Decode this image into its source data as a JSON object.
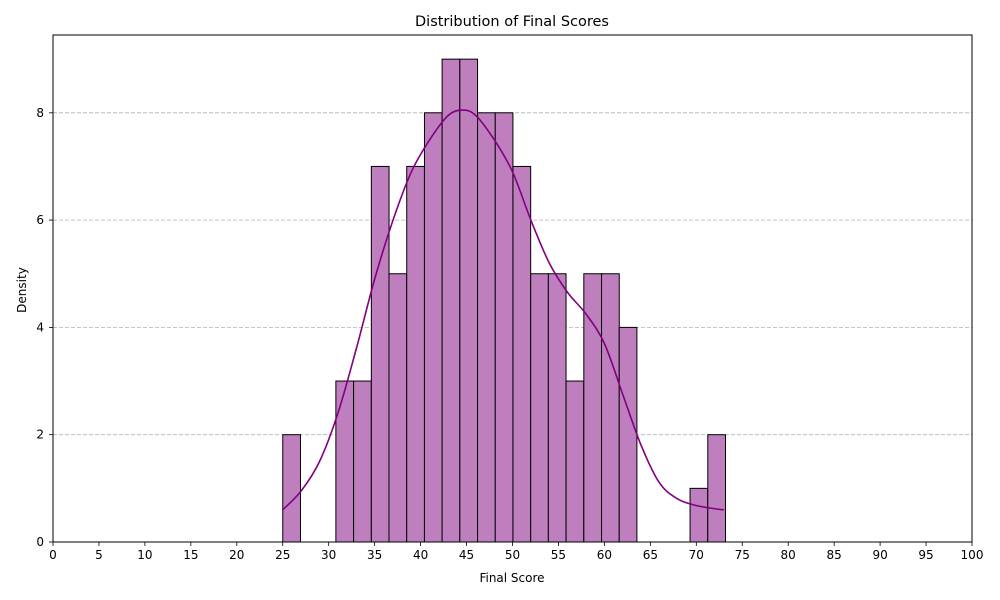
{
  "chart_data": {
    "type": "bar",
    "title": "Distribution of Final Scores",
    "xlabel": "Final Score",
    "ylabel": "Density",
    "xlim": [
      0,
      100
    ],
    "ylim": [
      0,
      9.45
    ],
    "xticks": [
      0,
      5,
      10,
      15,
      20,
      25,
      30,
      35,
      40,
      45,
      50,
      55,
      60,
      65,
      70,
      75,
      80,
      85,
      90,
      95,
      100
    ],
    "yticks": [
      0,
      2,
      4,
      6,
      8
    ],
    "grid": "y-dashed",
    "bin_width": 1.927,
    "bins": [
      {
        "x0": 25.0,
        "count": 2
      },
      {
        "x0": 26.93,
        "count": 0
      },
      {
        "x0": 28.85,
        "count": 0
      },
      {
        "x0": 30.78,
        "count": 3
      },
      {
        "x0": 32.71,
        "count": 3
      },
      {
        "x0": 34.64,
        "count": 7
      },
      {
        "x0": 36.56,
        "count": 5
      },
      {
        "x0": 38.49,
        "count": 7
      },
      {
        "x0": 40.42,
        "count": 8
      },
      {
        "x0": 42.34,
        "count": 9
      },
      {
        "x0": 44.27,
        "count": 9
      },
      {
        "x0": 46.2,
        "count": 8
      },
      {
        "x0": 48.12,
        "count": 8
      },
      {
        "x0": 50.05,
        "count": 7
      },
      {
        "x0": 51.98,
        "count": 5
      },
      {
        "x0": 53.9,
        "count": 5
      },
      {
        "x0": 55.83,
        "count": 3
      },
      {
        "x0": 57.76,
        "count": 5
      },
      {
        "x0": 59.69,
        "count": 5
      },
      {
        "x0": 61.61,
        "count": 4
      },
      {
        "x0": 63.54,
        "count": 0
      },
      {
        "x0": 65.47,
        "count": 0
      },
      {
        "x0": 67.39,
        "count": 0
      },
      {
        "x0": 69.32,
        "count": 1
      },
      {
        "x0": 71.25,
        "count": 2
      }
    ],
    "kde": {
      "x": [
        25,
        27,
        29,
        31,
        33,
        35,
        37,
        39,
        41,
        43,
        44.6,
        46,
        48,
        50,
        52,
        54,
        56,
        58,
        60,
        62,
        64,
        66,
        68,
        70,
        72,
        73
      ],
      "y": [
        0.6,
        0.95,
        1.5,
        2.4,
        3.6,
        4.9,
        6.0,
        6.9,
        7.5,
        7.95,
        8.05,
        7.95,
        7.5,
        6.9,
        6.0,
        5.2,
        4.65,
        4.25,
        3.7,
        2.75,
        1.8,
        1.1,
        0.8,
        0.68,
        0.62,
        0.6
      ]
    },
    "colors": {
      "bar_fill": "#bf7fbf",
      "bar_edge": "#000000",
      "kde_line": "#800080",
      "grid": "#b0b0b0"
    }
  }
}
